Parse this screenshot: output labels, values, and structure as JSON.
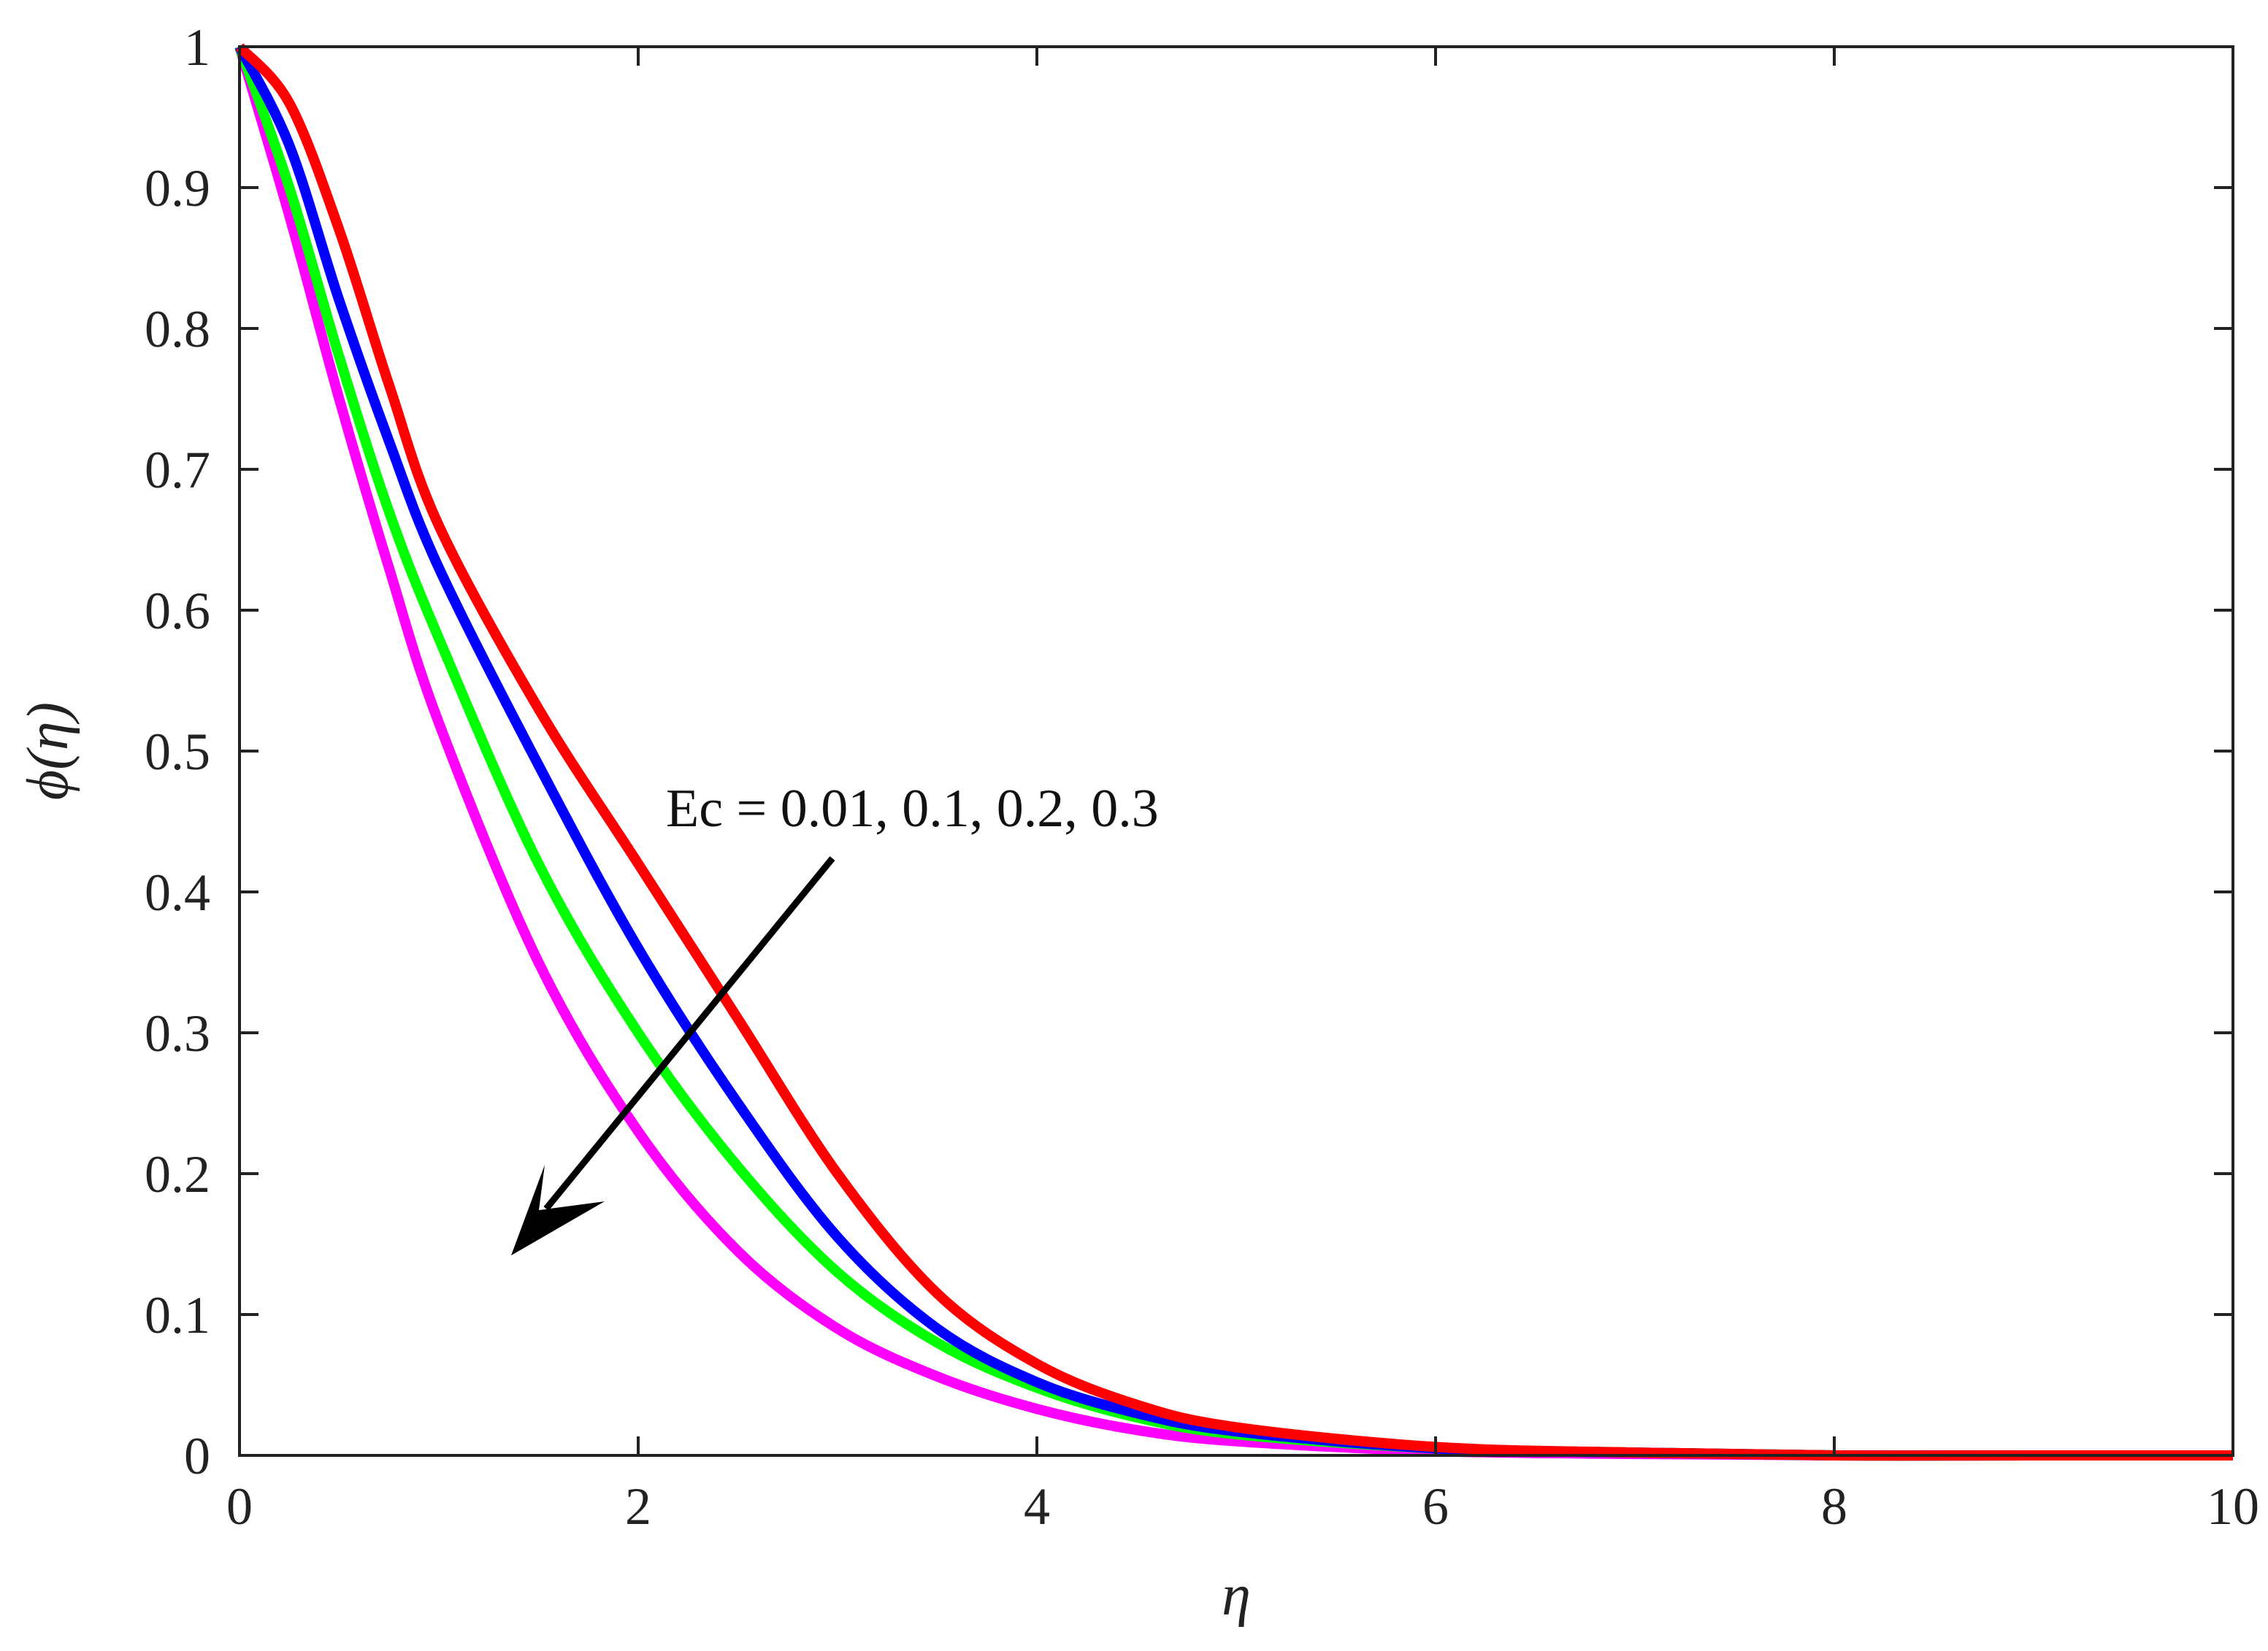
{
  "chart_data": {
    "type": "line",
    "title": "",
    "xlabel": "η",
    "ylabel": "ϕ(η)",
    "xlim": [
      0,
      10
    ],
    "ylim": [
      0,
      1
    ],
    "xticks": [
      0,
      2,
      4,
      6,
      8,
      10
    ],
    "yticks": [
      0,
      0.1,
      0.2,
      0.3,
      0.4,
      0.5,
      0.6,
      0.7,
      0.8,
      0.9,
      1
    ],
    "xtick_labels": [
      "0",
      "2",
      "4",
      "6",
      "8",
      "10"
    ],
    "ytick_labels": [
      "0",
      "0.1",
      "0.2",
      "0.3",
      "0.4",
      "0.5",
      "0.6",
      "0.7",
      "0.8",
      "0.9",
      "1"
    ],
    "grid": false,
    "x": [
      0,
      0.25,
      0.5,
      0.75,
      1,
      1.5,
      2,
      2.5,
      3,
      3.5,
      4,
      4.5,
      5,
      6,
      7,
      8,
      9,
      10
    ],
    "series": [
      {
        "color": "#ff00ff",
        "values": [
          1.0,
          0.88,
          0.75,
          0.63,
          0.52,
          0.35,
          0.23,
          0.145,
          0.09,
          0.056,
          0.033,
          0.018,
          0.01,
          0.003,
          0.001,
          0.0,
          0.0,
          0.0
        ]
      },
      {
        "color": "#00ff00",
        "values": [
          1.0,
          0.9,
          0.78,
          0.67,
          0.58,
          0.42,
          0.3,
          0.205,
          0.13,
          0.08,
          0.048,
          0.027,
          0.015,
          0.005,
          0.002,
          0.0,
          0.0,
          0.0
        ]
      },
      {
        "color": "#0000ff",
        "values": [
          1.0,
          0.93,
          0.82,
          0.72,
          0.63,
          0.49,
          0.36,
          0.25,
          0.155,
          0.09,
          0.052,
          0.03,
          0.017,
          0.005,
          0.002,
          0.0,
          0.0,
          0.0
        ]
      },
      {
        "color": "#ff0000",
        "values": [
          1.0,
          0.96,
          0.87,
          0.76,
          0.66,
          0.53,
          0.42,
          0.31,
          0.2,
          0.115,
          0.065,
          0.036,
          0.02,
          0.006,
          0.002,
          0.0,
          0.0,
          0.0
        ]
      }
    ],
    "annotation": {
      "text": "Ec = 0.01, 0.1, 0.2, 0.3",
      "arrow_direction": "down-left"
    }
  }
}
